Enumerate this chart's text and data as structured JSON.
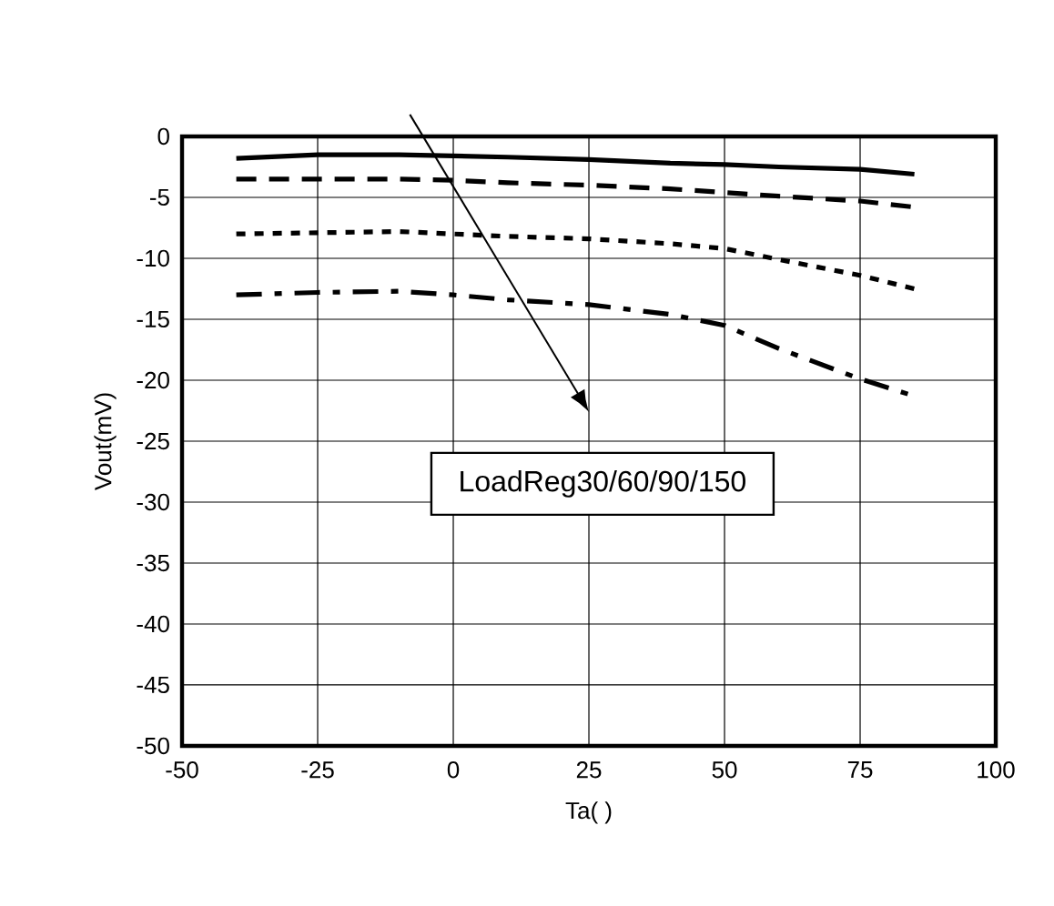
{
  "chart_data": {
    "type": "line",
    "xlabel": "Ta(   )",
    "ylabel": "Vout(mV)",
    "x": [
      -40,
      -25,
      -10,
      0,
      10,
      25,
      40,
      50,
      60,
      75,
      85
    ],
    "series": [
      {
        "color": "#000000",
        "line_style": "solid",
        "values": [
          -1.8,
          -1.5,
          -1.5,
          -1.6,
          -1.7,
          -1.9,
          -2.2,
          -2.3,
          -2.5,
          -2.7,
          -3.1
        ]
      },
      {
        "color": "#000000",
        "line_style": "dashed",
        "values": [
          -3.5,
          -3.5,
          -3.5,
          -3.6,
          -3.8,
          -4.0,
          -4.3,
          -4.6,
          -4.9,
          -5.3,
          -5.8
        ]
      },
      {
        "color": "#000000",
        "line_style": "dotted",
        "values": [
          -8.0,
          -7.9,
          -7.8,
          -8.0,
          -8.2,
          -8.4,
          -8.8,
          -9.2,
          -10.1,
          -11.4,
          -12.5
        ]
      },
      {
        "color": "#000000",
        "line_style": "dashdot",
        "values": [
          -13.0,
          -12.8,
          -12.7,
          -13.0,
          -13.4,
          -13.8,
          -14.6,
          -15.5,
          -17.4,
          -19.9,
          -21.3
        ]
      }
    ],
    "annotations": [
      "LoadReg30/60/90/150"
    ],
    "xlim": [
      -50,
      100
    ],
    "ylim": [
      -50,
      0
    ],
    "xticks": [
      -50,
      -25,
      0,
      25,
      50,
      75,
      100
    ],
    "yticks": [
      -50,
      -45,
      -40,
      -35,
      -30,
      -25,
      -20,
      -15,
      -10,
      -5,
      0
    ],
    "grid": true
  }
}
